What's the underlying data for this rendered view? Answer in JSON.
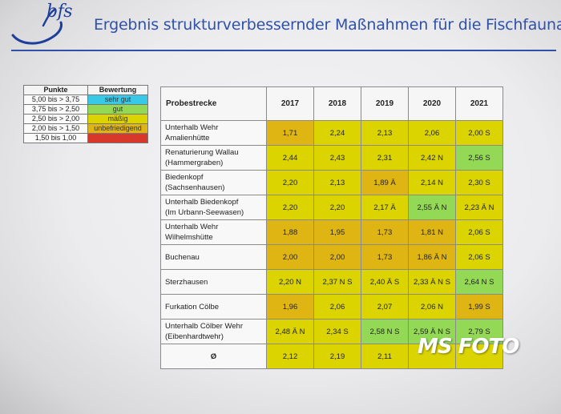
{
  "header": {
    "logo_text": "bfs",
    "title": "Ergebnis strukturverbessernder Maßnahmen für die Fischfauna"
  },
  "colors": {
    "title_blue": "#2f51a8",
    "very_good": "#38c9e8",
    "good": "#93d955",
    "moderate": "#dbd400",
    "unsatisfactory": "#dfb514",
    "bad": "#d8382a"
  },
  "legend": {
    "headers": [
      "Punkte",
      "Bewertung"
    ],
    "rows": [
      {
        "range": "5,00 bis > 3,75",
        "rating": "sehr gut",
        "color": "#38c9e8"
      },
      {
        "range": "3,75 bis > 2,50",
        "rating": "gut",
        "color": "#93d955"
      },
      {
        "range": "2,50 bis > 2,00",
        "rating": "mäßig",
        "color": "#dbd400"
      },
      {
        "range": "2,00 bis > 1,50",
        "rating": "unbefriedigend",
        "color": "#dfb514"
      },
      {
        "range": "1,50 bis 1,00",
        "rating": "",
        "color": "#d8382a"
      }
    ]
  },
  "table": {
    "headers": [
      "Probestrecke",
      "2017",
      "2018",
      "2019",
      "2020",
      "2021"
    ],
    "rows": [
      {
        "name": [
          "Unterhalb Wehr",
          "Amalienhütte"
        ],
        "values": [
          "1,71",
          "2,24",
          "2,13",
          "2,06",
          "2,00 S"
        ],
        "colors": [
          "o",
          "y",
          "y",
          "y",
          "y"
        ]
      },
      {
        "name": [
          "Renaturierung Wallau",
          "(Hammergraben)"
        ],
        "values": [
          "2,44",
          "2,43",
          "2,31",
          "2,42 N",
          "2,56 S"
        ],
        "colors": [
          "y",
          "y",
          "y",
          "y",
          "g"
        ]
      },
      {
        "name": [
          "Biedenkopf",
          "(Sachsenhausen)"
        ],
        "values": [
          "2,20",
          "2,13",
          "1,89 Ä",
          "2,14 N",
          "2,30 S"
        ],
        "colors": [
          "y",
          "y",
          "o",
          "y",
          "y"
        ]
      },
      {
        "name": [
          "Unterhalb Biedenkopf",
          "(Im Urbann-Seewasen)"
        ],
        "values": [
          "2,20",
          "2,20",
          "2,17 Ä",
          "2,55 Ä N",
          "2,23 Ä N"
        ],
        "colors": [
          "y",
          "y",
          "y",
          "g",
          "y"
        ]
      },
      {
        "name": [
          "Unterhalb Wehr",
          "Wilhelmshütte"
        ],
        "values": [
          "1,88",
          "1,95",
          "1,73",
          "1,81 N",
          "2,06 S"
        ],
        "colors": [
          "o",
          "o",
          "o",
          "o",
          "y"
        ]
      },
      {
        "name": [
          "Buchenau"
        ],
        "values": [
          "2,00",
          "2,00",
          "1,73",
          "1,86 Ä N",
          "2,06 S"
        ],
        "colors": [
          "o",
          "o",
          "o",
          "o",
          "y"
        ]
      },
      {
        "name": [
          "Sterzhausen"
        ],
        "values": [
          "2,20 N",
          "2,37 N S",
          "2,40 Ä S",
          "2,33 Ä N S",
          "2,64 N S"
        ],
        "colors": [
          "y",
          "y",
          "y",
          "y",
          "g"
        ]
      },
      {
        "name": [
          "Furkation Cölbe"
        ],
        "values": [
          "1,96",
          "2,06",
          "2,07",
          "2,06 N",
          "1,99 S"
        ],
        "colors": [
          "o",
          "y",
          "y",
          "y",
          "o"
        ]
      },
      {
        "name": [
          "Unterhalb Cölber Wehr",
          "(Eibenhardtwehr)"
        ],
        "values": [
          "2,48 Ä N",
          "2,34 S",
          "2,58 N S",
          "2,59 Ä N S",
          "2,79 S"
        ],
        "colors": [
          "y",
          "y",
          "g",
          "g",
          "g"
        ]
      },
      {
        "name": [
          "Ø"
        ],
        "values": [
          "2,12",
          "2,19",
          "2,11",
          "",
          ""
        ],
        "colors": [
          "y",
          "y",
          "y",
          "y",
          "y"
        ]
      }
    ]
  },
  "watermark": "MS FOTO"
}
